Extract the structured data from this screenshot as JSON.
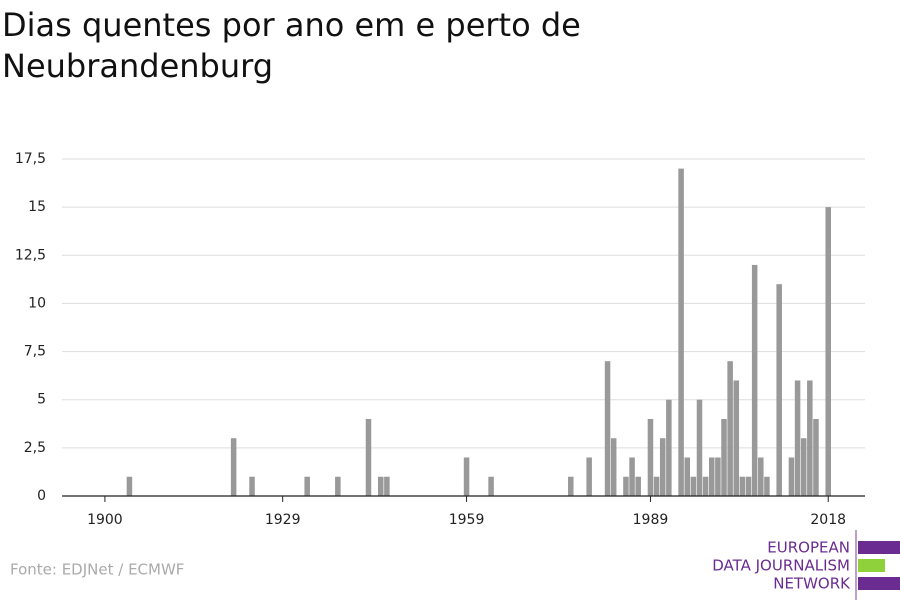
{
  "chart_data": {
    "type": "bar",
    "title": [
      "Dias quentes por ano em e perto de",
      "Neubrandenburg"
    ],
    "source": "Fonte: EDJNet / ECMWF",
    "logo": [
      "EUROPEAN",
      "DATA JOURNALISM",
      "NETWORK"
    ],
    "color": "#999999",
    "x": [
      1904,
      1921,
      1924,
      1933,
      1938,
      1943,
      1945,
      1946,
      1959,
      1963,
      1976,
      1979,
      1982,
      1983,
      1985,
      1986,
      1987,
      1989,
      1990,
      1991,
      1992,
      1994,
      1995,
      1996,
      1997,
      1998,
      1999,
      2000,
      2001,
      2002,
      2003,
      2004,
      2005,
      2006,
      2007,
      2008,
      2010,
      2012,
      2013,
      2014,
      2015,
      2016,
      2018
    ],
    "values": [
      1,
      3,
      1,
      1,
      1,
      4,
      1,
      1,
      2,
      1,
      1,
      2,
      7,
      3,
      1,
      2,
      1,
      4,
      1,
      3,
      5,
      17,
      2,
      1,
      5,
      1,
      2,
      2,
      4,
      7,
      6,
      1,
      1,
      12,
      2,
      1,
      11,
      2,
      6,
      3,
      6,
      4,
      15
    ],
    "xlim": [
      1893,
      2024
    ],
    "xticks": [
      1900,
      1929,
      1959,
      1989,
      2018
    ],
    "ylim": [
      0,
      17.5
    ],
    "yticks": [
      0,
      {
        "value": 2.5,
        "label": "2,5"
      },
      5,
      {
        "value": 7.5,
        "label": "7,5"
      },
      10,
      {
        "value": 12.5,
        "label": "12,5"
      },
      15,
      {
        "value": 17.5,
        "label": "17,5"
      }
    ],
    "grid": true
  }
}
